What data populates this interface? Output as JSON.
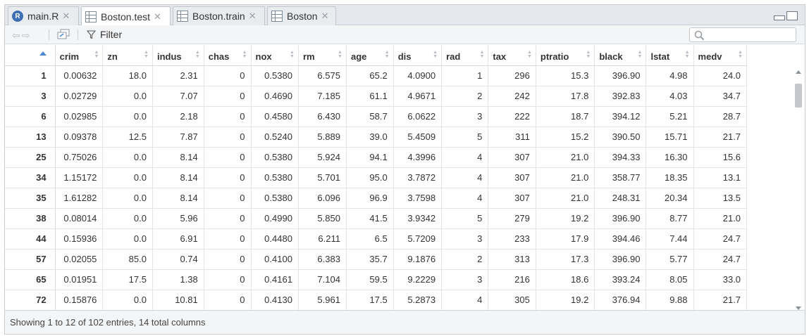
{
  "tabs": [
    {
      "label": "main.R",
      "icon": "r-script-icon",
      "active": false
    },
    {
      "label": "Boston.test",
      "icon": "data-grid-icon",
      "active": true
    },
    {
      "label": "Boston.train",
      "icon": "data-grid-icon",
      "active": false
    },
    {
      "label": "Boston",
      "icon": "data-grid-icon",
      "active": false
    }
  ],
  "toolbar": {
    "filter_label": "Filter",
    "search_value": ""
  },
  "table": {
    "columns": [
      "crim",
      "zn",
      "indus",
      "chas",
      "nox",
      "rm",
      "age",
      "dis",
      "rad",
      "tax",
      "ptratio",
      "black",
      "lstat",
      "medv"
    ],
    "rows": [
      {
        "id": "1",
        "cells": [
          "0.00632",
          "18.0",
          "2.31",
          "0",
          "0.5380",
          "6.575",
          "65.2",
          "4.0900",
          "1",
          "296",
          "15.3",
          "396.90",
          "4.98",
          "24.0"
        ]
      },
      {
        "id": "3",
        "cells": [
          "0.02729",
          "0.0",
          "7.07",
          "0",
          "0.4690",
          "7.185",
          "61.1",
          "4.9671",
          "2",
          "242",
          "17.8",
          "392.83",
          "4.03",
          "34.7"
        ]
      },
      {
        "id": "6",
        "cells": [
          "0.02985",
          "0.0",
          "2.18",
          "0",
          "0.4580",
          "6.430",
          "58.7",
          "6.0622",
          "3",
          "222",
          "18.7",
          "394.12",
          "5.21",
          "28.7"
        ]
      },
      {
        "id": "13",
        "cells": [
          "0.09378",
          "12.5",
          "7.87",
          "0",
          "0.5240",
          "5.889",
          "39.0",
          "5.4509",
          "5",
          "311",
          "15.2",
          "390.50",
          "15.71",
          "21.7"
        ]
      },
      {
        "id": "25",
        "cells": [
          "0.75026",
          "0.0",
          "8.14",
          "0",
          "0.5380",
          "5.924",
          "94.1",
          "4.3996",
          "4",
          "307",
          "21.0",
          "394.33",
          "16.30",
          "15.6"
        ]
      },
      {
        "id": "34",
        "cells": [
          "1.15172",
          "0.0",
          "8.14",
          "0",
          "0.5380",
          "5.701",
          "95.0",
          "3.7872",
          "4",
          "307",
          "21.0",
          "358.77",
          "18.35",
          "13.1"
        ]
      },
      {
        "id": "35",
        "cells": [
          "1.61282",
          "0.0",
          "8.14",
          "0",
          "0.5380",
          "6.096",
          "96.9",
          "3.7598",
          "4",
          "307",
          "21.0",
          "248.31",
          "20.34",
          "13.5"
        ]
      },
      {
        "id": "38",
        "cells": [
          "0.08014",
          "0.0",
          "5.96",
          "0",
          "0.4990",
          "5.850",
          "41.5",
          "3.9342",
          "5",
          "279",
          "19.2",
          "396.90",
          "8.77",
          "21.0"
        ]
      },
      {
        "id": "44",
        "cells": [
          "0.15936",
          "0.0",
          "6.91",
          "0",
          "0.4480",
          "6.211",
          "6.5",
          "5.7209",
          "3",
          "233",
          "17.9",
          "394.46",
          "7.44",
          "24.7"
        ]
      },
      {
        "id": "57",
        "cells": [
          "0.02055",
          "85.0",
          "0.74",
          "0",
          "0.4100",
          "6.383",
          "35.7",
          "9.1876",
          "2",
          "313",
          "17.3",
          "396.90",
          "5.77",
          "24.7"
        ]
      },
      {
        "id": "65",
        "cells": [
          "0.01951",
          "17.5",
          "1.38",
          "0",
          "0.4161",
          "7.104",
          "59.5",
          "9.2229",
          "3",
          "216",
          "18.6",
          "393.24",
          "8.05",
          "33.0"
        ]
      },
      {
        "id": "72",
        "cells": [
          "0.15876",
          "0.0",
          "10.81",
          "0",
          "0.4130",
          "5.961",
          "17.5",
          "5.2873",
          "4",
          "305",
          "19.2",
          "376.94",
          "9.88",
          "21.7"
        ]
      }
    ]
  },
  "status": {
    "text": "Showing 1 to 12 of 102 entries, 14 total columns"
  },
  "colors": {
    "sort_active": "#4a8bd6",
    "tab_bar_bg": "#e4e8ec",
    "grid_line": "#e3e5e7"
  }
}
